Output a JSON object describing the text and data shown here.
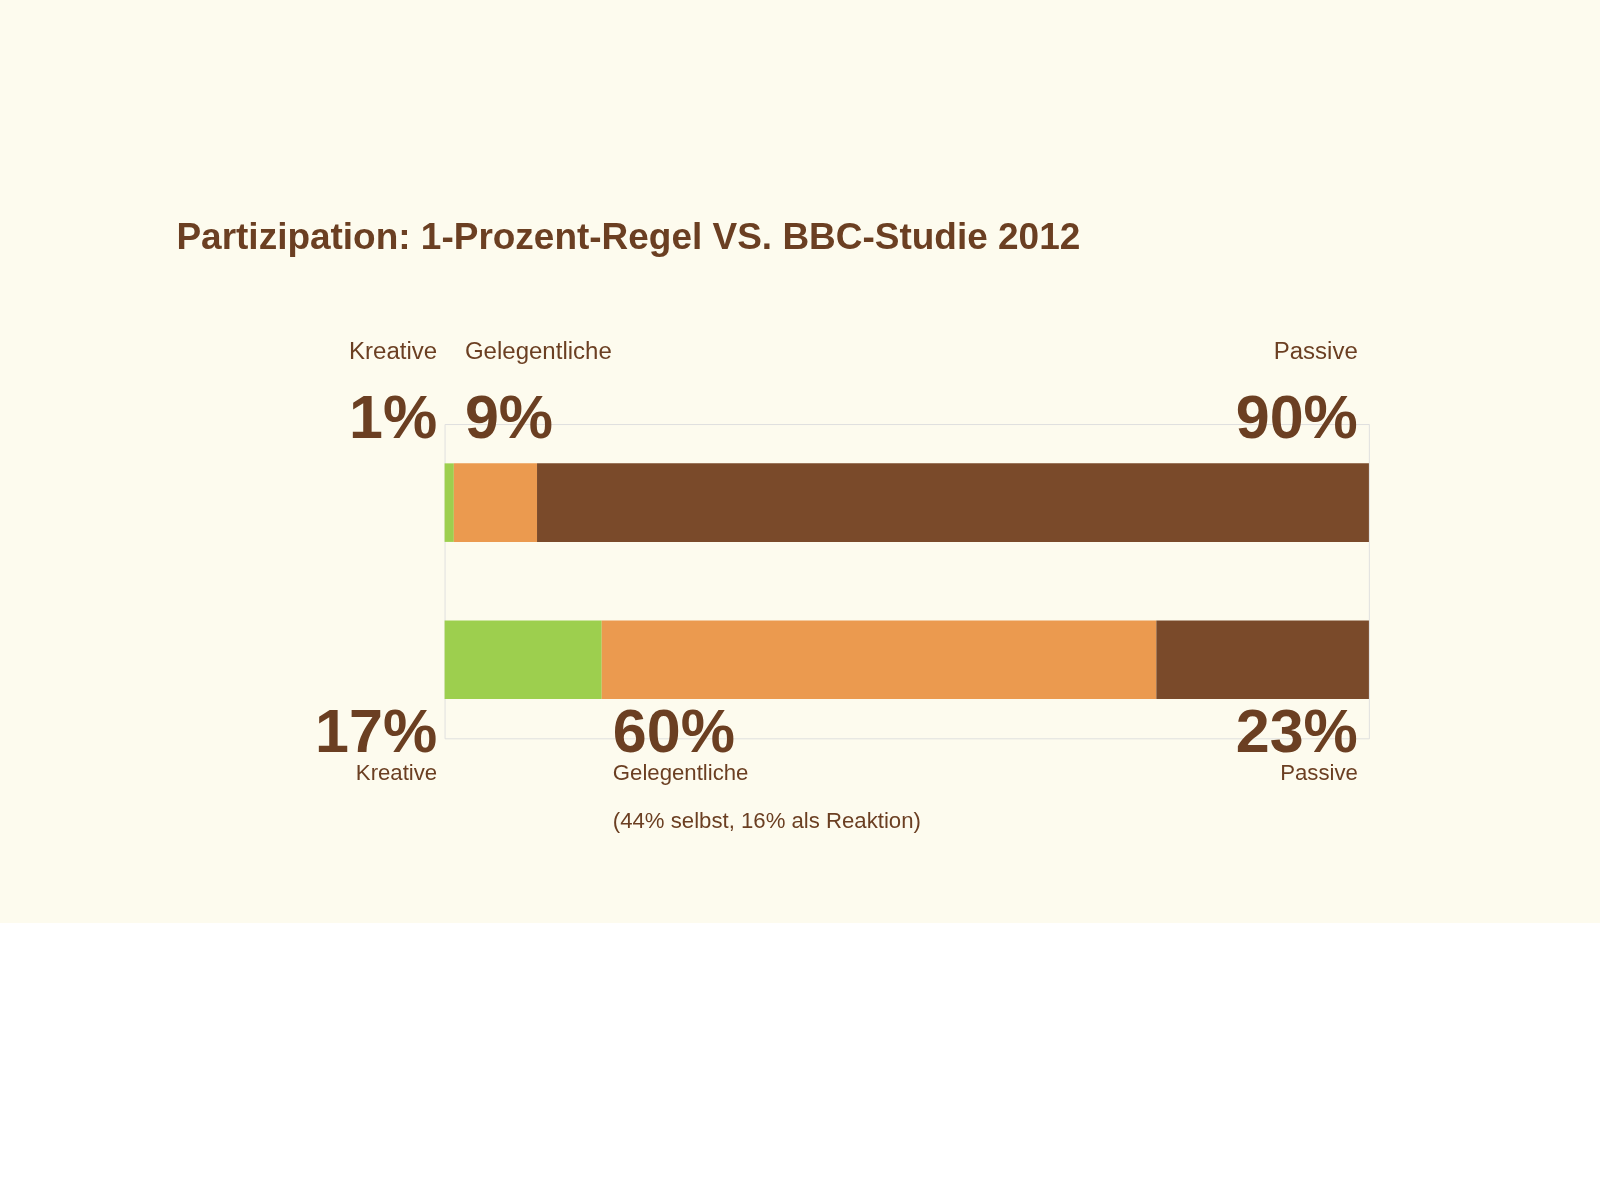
{
  "chart_data": {
    "type": "bar",
    "orientation": "horizontal",
    "stacked": true,
    "title": "Partizipation: 1-Prozent-Regel VS. BBC-Studie 2012",
    "categories": [
      null,
      null
    ],
    "xlim": [
      0,
      100
    ],
    "tick_labels": false,
    "grid": false,
    "legend": false,
    "series": [
      {
        "name": "Kreative",
        "color": "#9dcf4e",
        "values": [
          1,
          17
        ],
        "value_labels": [
          "1%",
          "17%"
        ]
      },
      {
        "name": "Gelegentliche",
        "color": "#eb9a4f",
        "values": [
          9,
          60
        ],
        "value_labels": [
          "9%",
          "60%"
        ]
      },
      {
        "name": "Passive",
        "color": "#7a4a2a",
        "values": [
          90,
          23
        ],
        "value_labels": [
          "90%",
          "23%"
        ]
      }
    ],
    "annotations": [
      "(44% selbst, 16% als Reaktion)"
    ]
  }
}
